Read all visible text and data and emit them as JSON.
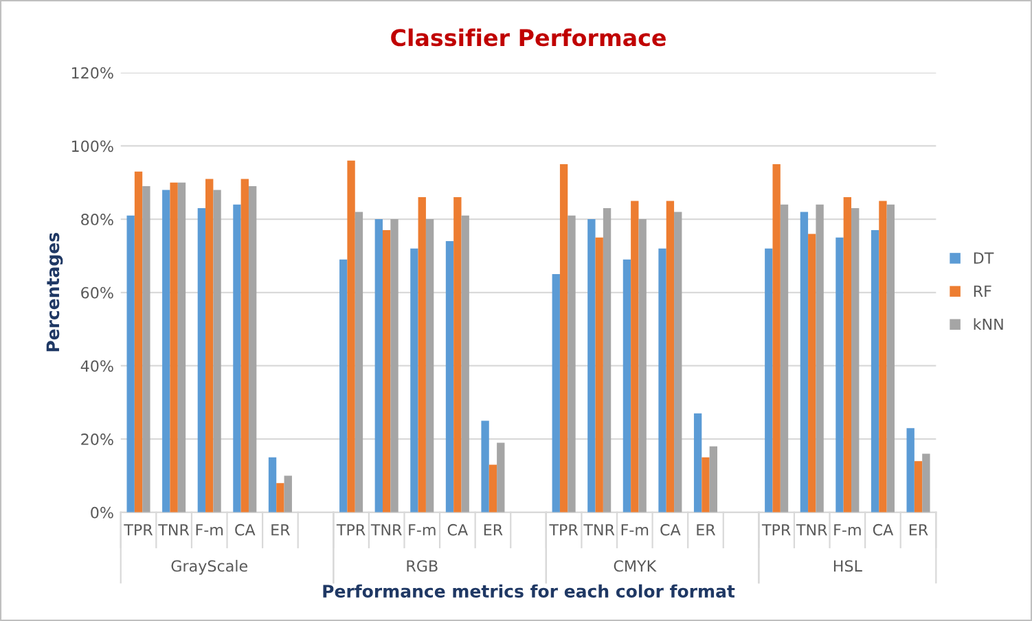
{
  "chart_data": {
    "type": "bar",
    "title": "Classifier Performace",
    "xlabel": "Performance metrics for each color format",
    "ylabel": "Percentages",
    "categories": [
      "TPR",
      "TNR",
      "F-m",
      "CA",
      "ER",
      null,
      "TPR",
      "TNR",
      "F-m",
      "CA",
      "ER",
      null,
      "TPR",
      "TNR",
      "F-m",
      "CA",
      "ER",
      null,
      "TPR",
      "TNR",
      "F-m",
      "CA",
      "ER"
    ],
    "annotations": [
      "GrayScale",
      "RGB",
      "CMYK",
      "HSL"
    ],
    "series": [
      {
        "name": "DT",
        "color": "#5b9bd5",
        "values": [
          81,
          88,
          83,
          84,
          15,
          null,
          69,
          80,
          72,
          74,
          25,
          null,
          65,
          80,
          69,
          72,
          27,
          null,
          72,
          82,
          75,
          77,
          23
        ]
      },
      {
        "name": "RF",
        "color": "#ed7d31",
        "values": [
          93,
          90,
          91,
          91,
          8,
          null,
          96,
          77,
          86,
          86,
          13,
          null,
          95,
          75,
          85,
          85,
          15,
          null,
          95,
          76,
          86,
          85,
          14
        ]
      },
      {
        "name": "kNN",
        "color": "#a5a5a5",
        "values": [
          89,
          90,
          88,
          89,
          10,
          null,
          82,
          80,
          80,
          81,
          19,
          null,
          81,
          83,
          80,
          82,
          18,
          null,
          84,
          84,
          83,
          84,
          16
        ]
      }
    ],
    "ylim": [
      0,
      120
    ],
    "yticks": [
      {
        "value": 0,
        "label": "0%"
      },
      {
        "value": 20,
        "label": "20%"
      },
      {
        "value": 40,
        "label": "40%"
      },
      {
        "value": 60,
        "label": "60%"
      },
      {
        "value": 80,
        "label": "80%"
      },
      {
        "value": 100,
        "label": "100%"
      },
      {
        "value": 120,
        "label": "120%"
      }
    ],
    "grid": "y",
    "legend": "right"
  }
}
